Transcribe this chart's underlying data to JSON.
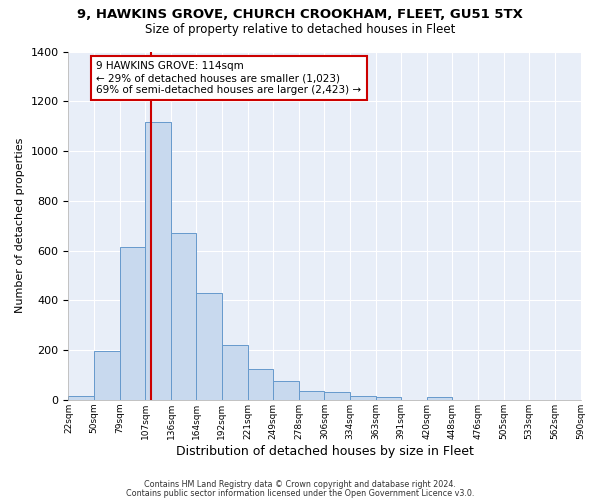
{
  "title": "9, HAWKINS GROVE, CHURCH CROOKHAM, FLEET, GU51 5TX",
  "subtitle": "Size of property relative to detached houses in Fleet",
  "xlabel": "Distribution of detached houses by size in Fleet",
  "ylabel": "Number of detached properties",
  "bar_color": "#c8d9ee",
  "bar_edge_color": "#6699cc",
  "plot_bg_color": "#e8eef8",
  "fig_bg_color": "#ffffff",
  "grid_color": "#ffffff",
  "bins": [
    22,
    50,
    79,
    107,
    136,
    164,
    192,
    221,
    249,
    278,
    306,
    334,
    363,
    391,
    420,
    448,
    476,
    505,
    533,
    562,
    590
  ],
  "counts": [
    15,
    195,
    615,
    1115,
    670,
    430,
    220,
    125,
    75,
    35,
    30,
    15,
    12,
    0,
    10,
    0,
    0,
    0,
    0,
    0
  ],
  "tick_labels": [
    "22sqm",
    "50sqm",
    "79sqm",
    "107sqm",
    "136sqm",
    "164sqm",
    "192sqm",
    "221sqm",
    "249sqm",
    "278sqm",
    "306sqm",
    "334sqm",
    "363sqm",
    "391sqm",
    "420sqm",
    "448sqm",
    "476sqm",
    "505sqm",
    "533sqm",
    "562sqm",
    "590sqm"
  ],
  "vline_x": 114,
  "vline_color": "#cc0000",
  "annotation_line1": "9 HAWKINS GROVE: 114sqm",
  "annotation_line2": "← 29% of detached houses are smaller (1,023)",
  "annotation_line3": "69% of semi-detached houses are larger (2,423) →",
  "annotation_box_color": "#ffffff",
  "annotation_box_edge": "#cc0000",
  "ylim": [
    0,
    1400
  ],
  "yticks": [
    0,
    200,
    400,
    600,
    800,
    1000,
    1200,
    1400
  ],
  "footer1": "Contains HM Land Registry data © Crown copyright and database right 2024.",
  "footer2": "Contains public sector information licensed under the Open Government Licence v3.0."
}
